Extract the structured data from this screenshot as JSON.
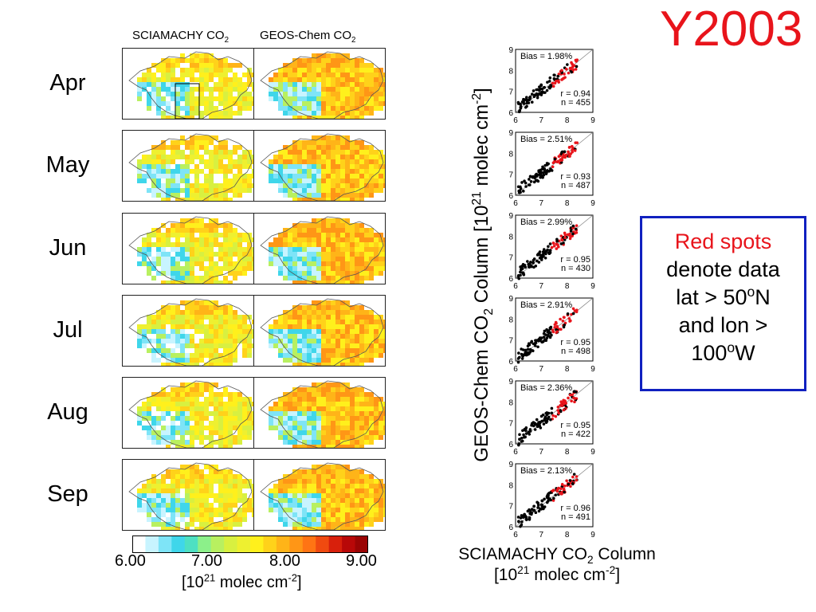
{
  "slide": {
    "title": "Y2003",
    "column_headers": {
      "sciamachy": {
        "text": "SCIAMACHY CO",
        "sub": "2"
      },
      "geos": {
        "text": "GEOS-Chem CO",
        "sub": "2"
      }
    },
    "months": [
      "Apr",
      "May",
      "Jun",
      "Jul",
      "Aug",
      "Sep"
    ],
    "callout": {
      "line1": "Red spots",
      "line2": "denote data",
      "line3_pre": "lat > 50",
      "line3_sup": "o",
      "line3_post": "N",
      "line4": "and lon >",
      "line5_pre": "100",
      "line5_sup": "o",
      "line5_post": "W"
    },
    "scatter_axis_labels": {
      "y_pre": "GEOS-Chem CO",
      "y_sub": "2",
      "y_mid": " Column [10",
      "y_sup": "21",
      "y_mid2": " molec cm",
      "y_sup2": "-2",
      "y_post": "]",
      "x_line1_pre": "SCIAMACHY CO",
      "x_line1_sub": "2",
      "x_line1_post": " Column",
      "x_line2_pre": "[10",
      "x_line2_sup": "21",
      "x_line2_mid": " molec cm",
      "x_line2_sup2": "-2",
      "x_line2_post": "]"
    },
    "colorbar": {
      "ticks": [
        "6.00",
        "7.00",
        "8.00",
        "9.00"
      ],
      "unit_pre": "[10",
      "unit_sup": "21",
      "unit_mid": " molec cm",
      "unit_sup2": "-2",
      "unit_post": "]",
      "colors": [
        "#ffffff",
        "#c8f4ff",
        "#7ee4f7",
        "#3fd6ea",
        "#4ee0c2",
        "#8cf08a",
        "#b8f060",
        "#d8f040",
        "#eef030",
        "#fff01c",
        "#ffd21a",
        "#ffb418",
        "#ff9616",
        "#ff7414",
        "#f04a10",
        "#d8200c",
        "#b80808",
        "#9a0404"
      ]
    },
    "colors": {
      "title": "#e8141b",
      "callout_border": "#1020c0",
      "red_points": "#e8141b",
      "black_points": "#000000"
    }
  },
  "chart_data": [
    {
      "type": "scatter",
      "panel": "Apr",
      "bias_label": "Bias = 1.98%",
      "r_label": "r = 0.94",
      "n_label": "n = 455",
      "xlim": [
        6,
        9
      ],
      "ylim": [
        6,
        9
      ],
      "xticks": [
        "6",
        "7",
        "8",
        "9"
      ],
      "yticks": [
        "6",
        "7",
        "8",
        "9"
      ]
    },
    {
      "type": "scatter",
      "panel": "May",
      "bias_label": "Bias = 2.51%",
      "r_label": "r = 0.93",
      "n_label": "n = 487",
      "xlim": [
        6,
        9
      ],
      "ylim": [
        6,
        9
      ],
      "xticks": [
        "6",
        "7",
        "8",
        "9"
      ],
      "yticks": [
        "6",
        "7",
        "8",
        "9"
      ]
    },
    {
      "type": "scatter",
      "panel": "Jun",
      "bias_label": "Bias = 2.99%",
      "r_label": "r = 0.95",
      "n_label": "n = 430",
      "xlim": [
        6,
        9
      ],
      "ylim": [
        6,
        9
      ],
      "xticks": [
        "6",
        "7",
        "8",
        "9"
      ],
      "yticks": [
        "6",
        "7",
        "8",
        "9"
      ]
    },
    {
      "type": "scatter",
      "panel": "Jul",
      "bias_label": "Bias = 2.91%",
      "r_label": "r = 0.95",
      "n_label": "n = 498",
      "xlim": [
        6,
        9
      ],
      "ylim": [
        6,
        9
      ],
      "xticks": [
        "6",
        "7",
        "8",
        "9"
      ],
      "yticks": [
        "6",
        "7",
        "8",
        "9"
      ]
    },
    {
      "type": "scatter",
      "panel": "Aug",
      "bias_label": "Bias = 2.36%",
      "r_label": "r = 0.95",
      "n_label": "n = 422",
      "xlim": [
        6,
        9
      ],
      "ylim": [
        6,
        9
      ],
      "xticks": [
        "6",
        "7",
        "8",
        "9"
      ],
      "yticks": [
        "6",
        "7",
        "8",
        "9"
      ]
    },
    {
      "type": "scatter",
      "panel": "Sep",
      "bias_label": "Bias = 2.13%",
      "r_label": "r = 0.96",
      "n_label": "n = 491",
      "xlim": [
        6,
        9
      ],
      "ylim": [
        6,
        9
      ],
      "xticks": [
        "6",
        "7",
        "8",
        "9"
      ],
      "yticks": [
        "6",
        "7",
        "8",
        "9"
      ]
    }
  ]
}
